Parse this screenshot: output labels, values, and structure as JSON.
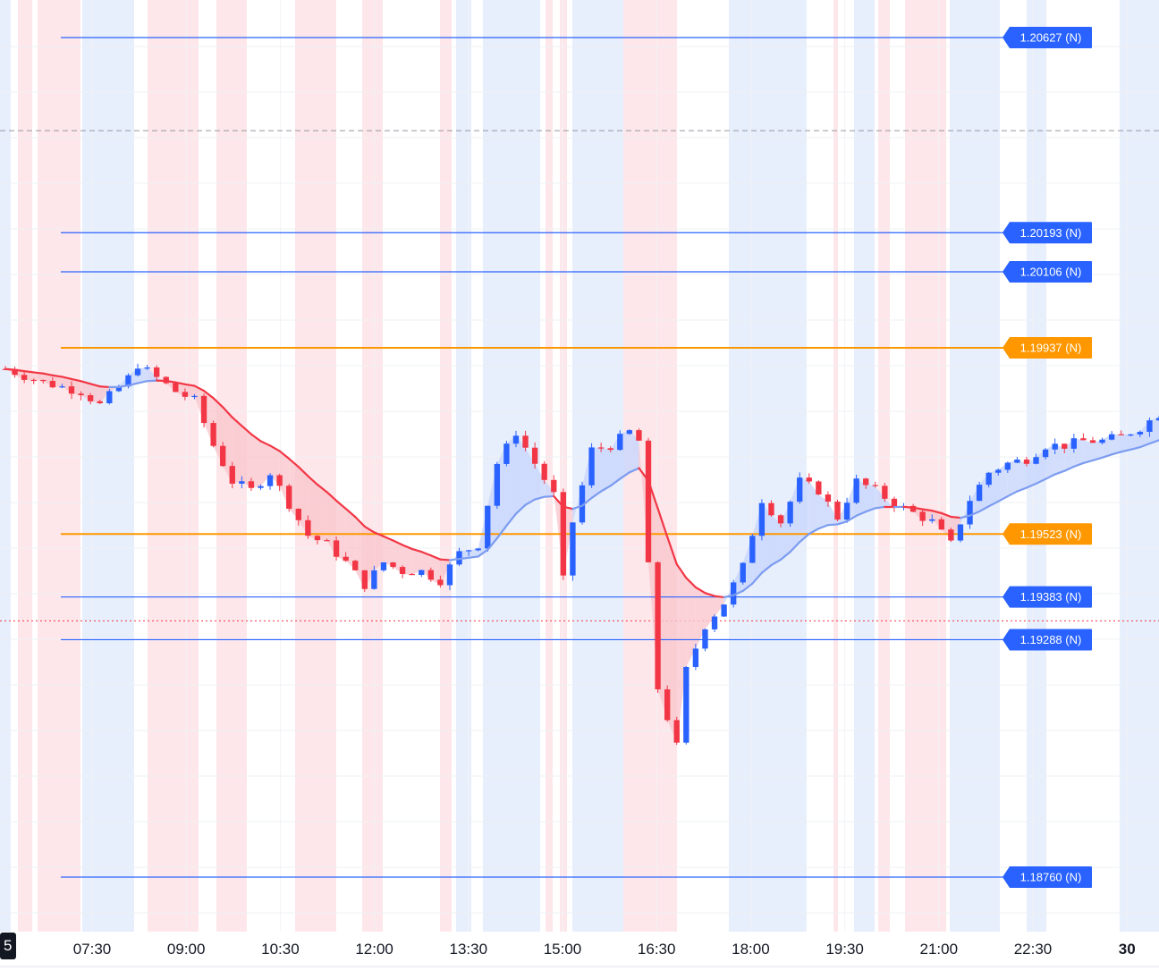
{
  "chart_data": {
    "type": "candlestick",
    "x_ticks": [
      "07:30",
      "09:00",
      "10:30",
      "12:00",
      "13:30",
      "15:00",
      "16:30",
      "18:00",
      "19:30",
      "21:00",
      "22:30",
      "30"
    ],
    "left_edge_label": "5",
    "colors": {
      "up": "#2962ff",
      "down": "#f23645",
      "level_blue": "#2962ff",
      "level_orange": "#ff9800",
      "ema_down": "#f23645",
      "ema_up": "#7c9cf0",
      "band_red": "#fde3e6",
      "band_blue": "#e3ebfc"
    },
    "levels": [
      {
        "value": 1.20627,
        "label": "1.20627 (N)",
        "color": "blue"
      },
      {
        "value": 1.20193,
        "label": "1.20193 (N)",
        "color": "blue"
      },
      {
        "value": 1.20106,
        "label": "1.20106 (N)",
        "color": "blue"
      },
      {
        "value": 1.19937,
        "label": "1.19937 (N)",
        "color": "orange"
      },
      {
        "value": 1.19523,
        "label": "1.19523 (N)",
        "color": "orange"
      },
      {
        "value": 1.19383,
        "label": "1.19383 (N)",
        "color": "blue"
      },
      {
        "value": 1.19288,
        "label": "1.19288 (N)",
        "color": "blue"
      },
      {
        "value": 1.1876,
        "label": "1.18760 (N)",
        "color": "blue"
      }
    ],
    "dashed_line_value": 1.2042,
    "dotted_line_value": 1.1933,
    "price_path": [
      [
        0,
        1.1989
      ],
      [
        4,
        1.1986
      ],
      [
        8,
        1.1984
      ],
      [
        10,
        1.1981
      ],
      [
        13,
        1.1987
      ],
      [
        14,
        1.199
      ],
      [
        16,
        1.1987
      ],
      [
        18,
        1.1984
      ],
      [
        20,
        1.1982
      ],
      [
        22,
        1.1972
      ],
      [
        24,
        1.1964
      ],
      [
        26,
        1.1962
      ],
      [
        28,
        1.1966
      ],
      [
        30,
        1.1959
      ],
      [
        32,
        1.1952
      ],
      [
        34,
        1.195
      ],
      [
        36,
        1.1946
      ],
      [
        38,
        1.1941
      ],
      [
        40,
        1.1946
      ],
      [
        42,
        1.1944
      ],
      [
        44,
        1.1944
      ],
      [
        46,
        1.1942
      ],
      [
        48,
        1.1948
      ],
      [
        50,
        1.195
      ],
      [
        52,
        1.1968
      ],
      [
        54,
        1.1975
      ],
      [
        56,
        1.1968
      ],
      [
        58,
        1.1961
      ],
      [
        59,
        1.1942
      ],
      [
        60,
        1.1955
      ],
      [
        62,
        1.1971
      ],
      [
        64,
        1.1972
      ],
      [
        66,
        1.1975
      ],
      [
        67,
        1.1973
      ],
      [
        68,
        1.1945
      ],
      [
        69,
        1.1918
      ],
      [
        71,
        1.1905
      ],
      [
        72,
        1.1922
      ],
      [
        74,
        1.1932
      ],
      [
        76,
        1.1937
      ],
      [
        78,
        1.1945
      ],
      [
        80,
        1.196
      ],
      [
        82,
        1.1955
      ],
      [
        84,
        1.1964
      ],
      [
        86,
        1.1962
      ],
      [
        88,
        1.1956
      ],
      [
        90,
        1.1964
      ],
      [
        92,
        1.1962
      ],
      [
        94,
        1.1959
      ],
      [
        96,
        1.1957
      ],
      [
        98,
        1.1955
      ],
      [
        100,
        1.195
      ],
      [
        102,
        1.196
      ],
      [
        104,
        1.1966
      ],
      [
        106,
        1.1968
      ],
      [
        108,
        1.1969
      ],
      [
        110,
        1.1972
      ],
      [
        112,
        1.1972
      ],
      [
        114,
        1.1973
      ],
      [
        116,
        1.1973
      ],
      [
        118,
        1.1974
      ],
      [
        120,
        1.1976
      ],
      [
        122,
        1.1979
      ]
    ],
    "ema_window": 14
  }
}
